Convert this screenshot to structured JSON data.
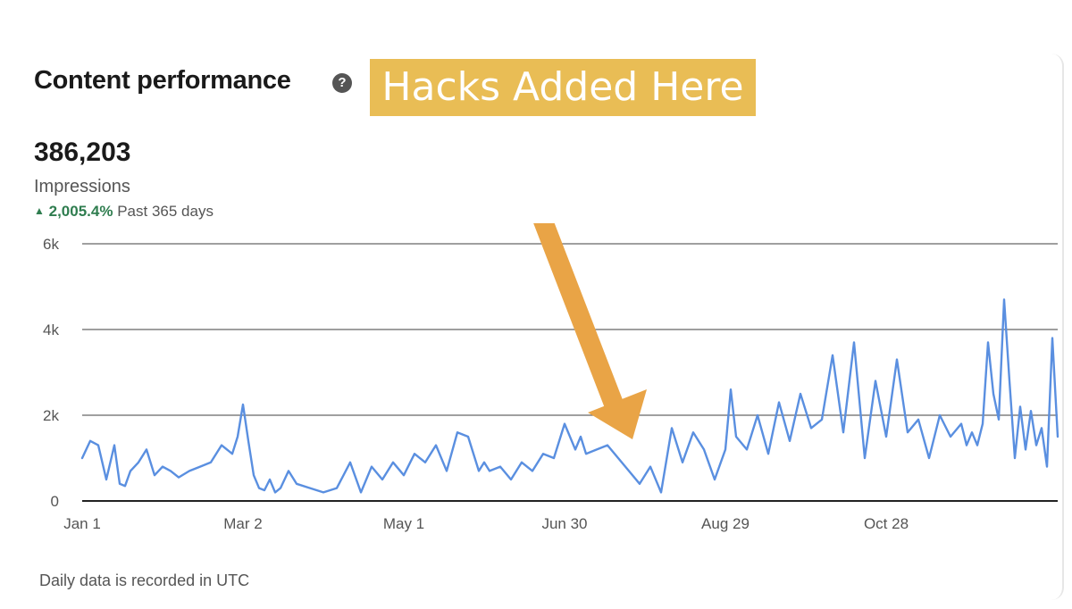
{
  "header": {
    "title": "Content performance",
    "help_icon": "question-circle-icon",
    "banner_text": "Hacks Added Here",
    "banner_color": "#e9bd55",
    "arrow_color": "#e9a446"
  },
  "summary": {
    "value": "386,203",
    "label": "Impressions",
    "change_arrow": "▲",
    "change_pct": "2,005.4%",
    "change_period": "Past 365 days",
    "change_color": "#2f7d4f"
  },
  "footer": {
    "note": "Daily data is recorded in UTC"
  },
  "chart_data": {
    "type": "line",
    "title": "",
    "xlabel": "",
    "ylabel": "",
    "ylim": [
      0,
      6000
    ],
    "y_ticks": [
      0,
      2000,
      4000,
      6000
    ],
    "y_tick_labels": [
      "0",
      "2k",
      "4k",
      "6k"
    ],
    "x_tick_labels": [
      "Jan 1",
      "Mar 2",
      "May 1",
      "Jun 30",
      "Aug 29",
      "Oct 28"
    ],
    "x_tick_days": [
      0,
      60,
      120,
      180,
      240,
      300
    ],
    "grid": true,
    "legend": "none",
    "line_color": "#5a8fe0",
    "series": [
      {
        "keypoints_day": [
          0,
          3,
          6,
          9,
          12,
          14,
          16,
          18,
          21,
          24,
          27,
          30,
          33,
          36,
          40,
          44,
          48,
          52,
          56,
          58,
          60,
          62,
          64,
          66,
          68,
          70,
          72,
          74,
          77,
          80,
          85,
          90,
          95,
          100,
          104,
          108,
          112,
          116,
          120,
          124,
          128,
          132,
          136,
          140,
          144,
          148,
          150,
          152,
          156,
          160,
          164,
          168,
          172,
          176,
          180,
          184,
          186,
          188,
          192,
          196,
          200,
          204,
          208,
          212,
          216,
          220,
          224,
          228,
          232,
          236,
          240,
          242,
          244,
          248,
          252,
          256,
          260,
          264,
          268,
          272,
          276,
          280,
          284,
          288,
          292,
          296,
          300,
          304,
          308,
          312,
          316,
          320,
          324,
          328,
          330,
          332,
          334,
          336,
          338,
          340,
          342,
          344,
          346,
          348,
          350,
          352,
          354,
          356,
          358,
          360,
          362,
          364
        ],
        "values": [
          1000,
          1400,
          1300,
          500,
          1300,
          400,
          350,
          700,
          900,
          1200,
          600,
          800,
          700,
          550,
          700,
          800,
          900,
          1300,
          1100,
          1500,
          2250,
          1400,
          600,
          300,
          250,
          500,
          200,
          300,
          700,
          400,
          300,
          200,
          300,
          900,
          200,
          800,
          500,
          900,
          600,
          1100,
          900,
          1300,
          700,
          1600,
          1500,
          700,
          900,
          700,
          800,
          500,
          900,
          700,
          1100,
          1000,
          1800,
          1200,
          1500,
          1100,
          1200,
          1300,
          1000,
          700,
          400,
          800,
          200,
          1700,
          900,
          1600,
          1200,
          500,
          1200,
          2600,
          1500,
          1200,
          2000,
          1100,
          2300,
          1400,
          2500,
          1700,
          1900,
          3400,
          1600,
          3700,
          1000,
          2800,
          1500,
          3300,
          1600,
          1900,
          1000,
          2000,
          1500,
          1800,
          1300,
          1600,
          1300,
          1800,
          3700,
          2500,
          1900,
          4700,
          2800,
          1000,
          2200,
          1200,
          2100,
          1300,
          1700,
          800,
          3800,
          1500
        ]
      }
    ]
  }
}
